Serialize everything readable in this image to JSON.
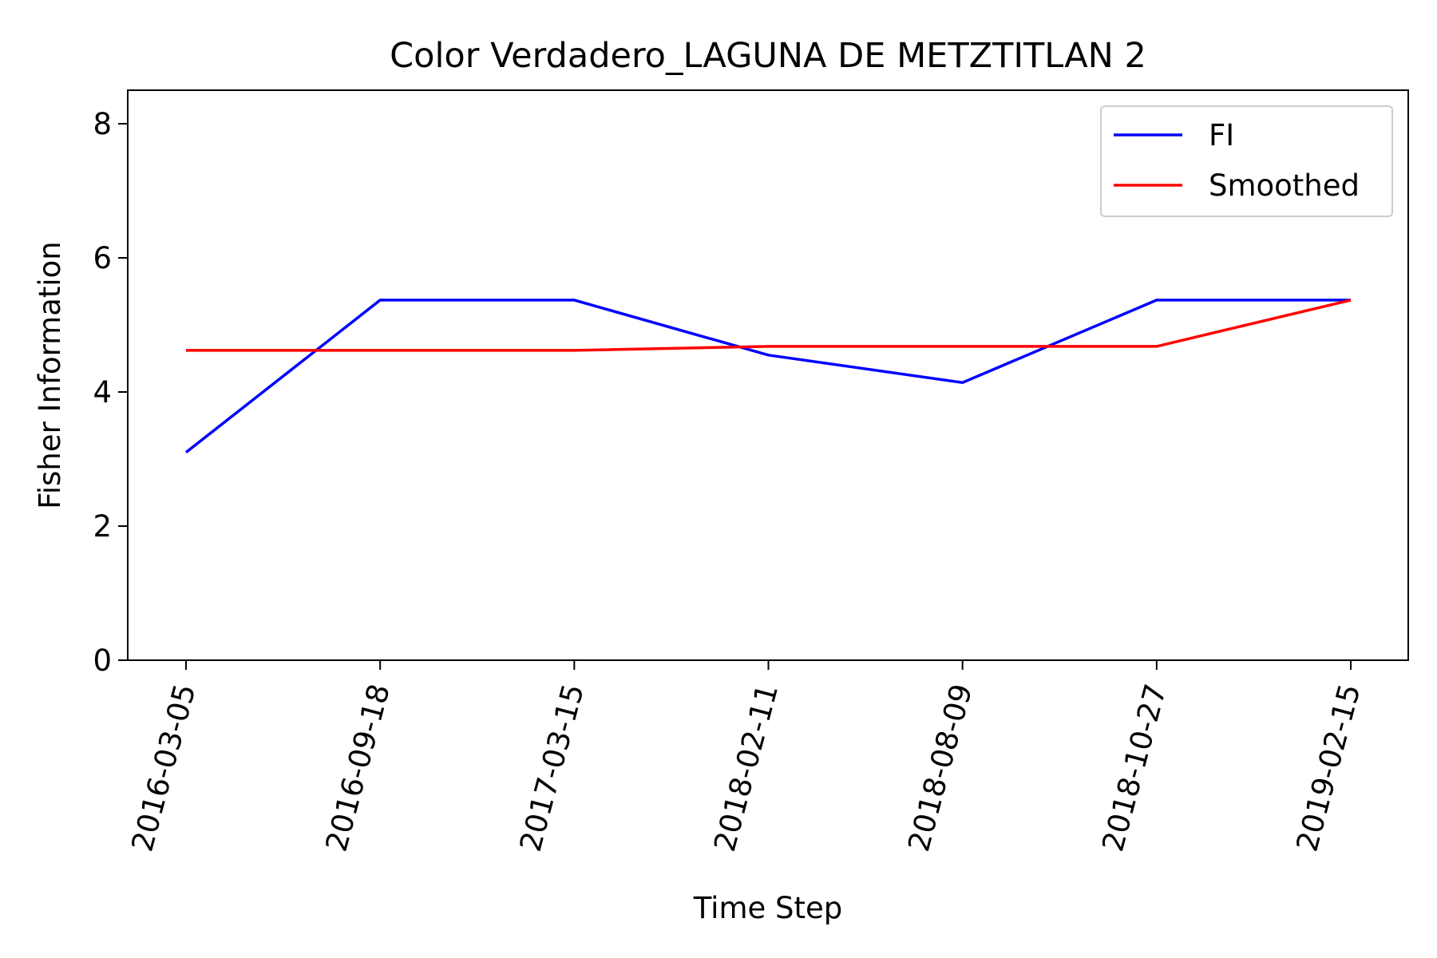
{
  "chart_data": {
    "type": "line",
    "title": "Color Verdadero_LAGUNA DE METZTITLAN 2",
    "xlabel": "Time Step",
    "ylabel": "Fisher Information",
    "categories": [
      "2016-03-05",
      "2016-09-18",
      "2017-03-15",
      "2018-02-11",
      "2018-08-09",
      "2018-10-27",
      "2019-02-15"
    ],
    "ylim": [
      0,
      8.5
    ],
    "yticks": [
      0,
      2,
      4,
      6,
      8
    ],
    "series": [
      {
        "name": "FI",
        "color": "#0000ff",
        "values": [
          3.1,
          5.37,
          5.37,
          4.55,
          4.14,
          5.37,
          5.37
        ]
      },
      {
        "name": "Smoothed",
        "color": "#ff0000",
        "values": [
          4.62,
          4.62,
          4.62,
          4.68,
          4.68,
          4.68,
          5.37
        ]
      }
    ],
    "legend_position": "top-right",
    "grid": false,
    "xtick_rotation": "rotated labels"
  }
}
